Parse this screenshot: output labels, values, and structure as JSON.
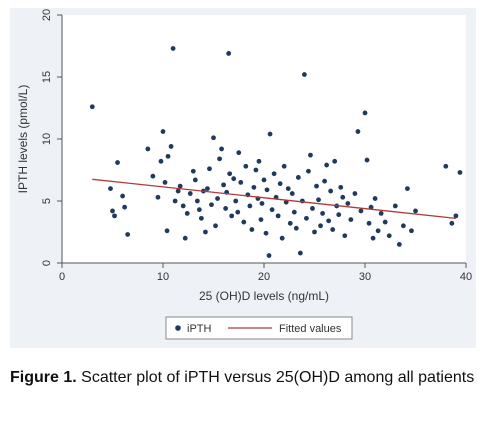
{
  "caption": {
    "label": "Figure 1.",
    "text": "Scatter plot of iPTH versus 25(OH)D among all patients"
  },
  "chart_data": {
    "type": "scatter",
    "xlabel": "25 (OH)D levels (ng/mL)",
    "ylabel": "IPTH levels (pmol/L)",
    "xlim": [
      0,
      40
    ],
    "ylim": [
      0,
      20
    ],
    "x_ticks": [
      0,
      10,
      20,
      30,
      40
    ],
    "y_ticks": [
      0,
      5,
      10,
      15,
      20
    ],
    "grid": false,
    "legend_position": "bottom",
    "series": [
      {
        "name": "iPTH",
        "kind": "scatter",
        "color": "#1f3a5c",
        "points": [
          [
            3.0,
            12.6
          ],
          [
            4.8,
            6.0
          ],
          [
            5.0,
            4.2
          ],
          [
            5.2,
            3.8
          ],
          [
            5.5,
            8.1
          ],
          [
            6.0,
            5.4
          ],
          [
            6.2,
            4.5
          ],
          [
            6.5,
            2.3
          ],
          [
            8.5,
            9.2
          ],
          [
            9.0,
            7.0
          ],
          [
            9.5,
            5.3
          ],
          [
            9.8,
            8.2
          ],
          [
            10.0,
            10.6
          ],
          [
            10.2,
            6.5
          ],
          [
            10.4,
            2.6
          ],
          [
            10.5,
            8.6
          ],
          [
            10.8,
            9.4
          ],
          [
            11.0,
            17.3
          ],
          [
            11.2,
            5.0
          ],
          [
            11.5,
            5.8
          ],
          [
            11.7,
            6.2
          ],
          [
            12.0,
            4.6
          ],
          [
            12.2,
            2.0
          ],
          [
            12.4,
            4.0
          ],
          [
            12.7,
            5.6
          ],
          [
            13.0,
            7.4
          ],
          [
            13.2,
            6.7
          ],
          [
            13.4,
            5.0
          ],
          [
            13.6,
            4.3
          ],
          [
            13.8,
            3.6
          ],
          [
            14.0,
            5.8
          ],
          [
            14.2,
            2.5
          ],
          [
            14.4,
            6.0
          ],
          [
            14.6,
            7.6
          ],
          [
            14.8,
            4.7
          ],
          [
            15.0,
            10.1
          ],
          [
            15.2,
            3.0
          ],
          [
            15.4,
            5.2
          ],
          [
            15.6,
            8.4
          ],
          [
            15.8,
            9.2
          ],
          [
            16.0,
            6.3
          ],
          [
            16.2,
            4.4
          ],
          [
            16.3,
            5.7
          ],
          [
            16.5,
            16.9
          ],
          [
            16.6,
            7.2
          ],
          [
            16.8,
            3.8
          ],
          [
            17.0,
            6.8
          ],
          [
            17.2,
            5.0
          ],
          [
            17.4,
            4.1
          ],
          [
            17.5,
            8.9
          ],
          [
            17.7,
            6.5
          ],
          [
            18.0,
            3.3
          ],
          [
            18.2,
            7.8
          ],
          [
            18.4,
            5.5
          ],
          [
            18.6,
            4.6
          ],
          [
            18.8,
            2.7
          ],
          [
            19.0,
            6.1
          ],
          [
            19.2,
            7.5
          ],
          [
            19.4,
            5.2
          ],
          [
            19.5,
            8.2
          ],
          [
            19.7,
            3.5
          ],
          [
            19.8,
            4.8
          ],
          [
            20.0,
            6.7
          ],
          [
            20.2,
            2.4
          ],
          [
            20.3,
            5.9
          ],
          [
            20.5,
            0.6
          ],
          [
            20.6,
            10.4
          ],
          [
            20.8,
            4.3
          ],
          [
            21.0,
            7.2
          ],
          [
            21.2,
            5.3
          ],
          [
            21.4,
            3.8
          ],
          [
            21.6,
            6.4
          ],
          [
            21.8,
            2.0
          ],
          [
            22.0,
            7.8
          ],
          [
            22.2,
            4.9
          ],
          [
            22.4,
            6.0
          ],
          [
            22.6,
            3.2
          ],
          [
            22.8,
            5.6
          ],
          [
            23.0,
            4.1
          ],
          [
            23.2,
            2.8
          ],
          [
            23.4,
            6.9
          ],
          [
            23.6,
            0.8
          ],
          [
            23.8,
            5.0
          ],
          [
            24.0,
            15.2
          ],
          [
            24.2,
            3.6
          ],
          [
            24.4,
            7.4
          ],
          [
            24.6,
            8.7
          ],
          [
            24.8,
            4.4
          ],
          [
            25.0,
            2.5
          ],
          [
            25.2,
            6.2
          ],
          [
            25.4,
            5.1
          ],
          [
            25.6,
            3.0
          ],
          [
            25.8,
            4.0
          ],
          [
            26.0,
            6.6
          ],
          [
            26.2,
            7.9
          ],
          [
            26.4,
            3.4
          ],
          [
            26.6,
            5.8
          ],
          [
            26.8,
            2.7
          ],
          [
            27.0,
            8.2
          ],
          [
            27.2,
            4.6
          ],
          [
            27.4,
            3.9
          ],
          [
            27.6,
            6.1
          ],
          [
            27.8,
            5.3
          ],
          [
            28.0,
            2.2
          ],
          [
            28.3,
            4.8
          ],
          [
            28.6,
            3.5
          ],
          [
            29.0,
            5.6
          ],
          [
            29.3,
            10.6
          ],
          [
            29.6,
            4.2
          ],
          [
            30.0,
            12.1
          ],
          [
            30.2,
            8.3
          ],
          [
            30.4,
            3.2
          ],
          [
            30.6,
            4.5
          ],
          [
            30.8,
            2.0
          ],
          [
            31.0,
            5.2
          ],
          [
            31.3,
            2.6
          ],
          [
            31.6,
            4.0
          ],
          [
            32.0,
            3.3
          ],
          [
            32.4,
            2.2
          ],
          [
            33.0,
            4.6
          ],
          [
            33.4,
            1.5
          ],
          [
            33.8,
            3.0
          ],
          [
            34.2,
            6.0
          ],
          [
            34.6,
            2.6
          ],
          [
            35.0,
            4.2
          ],
          [
            38.0,
            7.8
          ],
          [
            38.6,
            3.2
          ],
          [
            39.0,
            3.8
          ],
          [
            39.4,
            7.3
          ]
        ]
      },
      {
        "name": "Fitted values",
        "kind": "line",
        "color": "#b03a3a",
        "points": [
          [
            3.0,
            6.75
          ],
          [
            39.0,
            3.6
          ]
        ]
      }
    ]
  }
}
